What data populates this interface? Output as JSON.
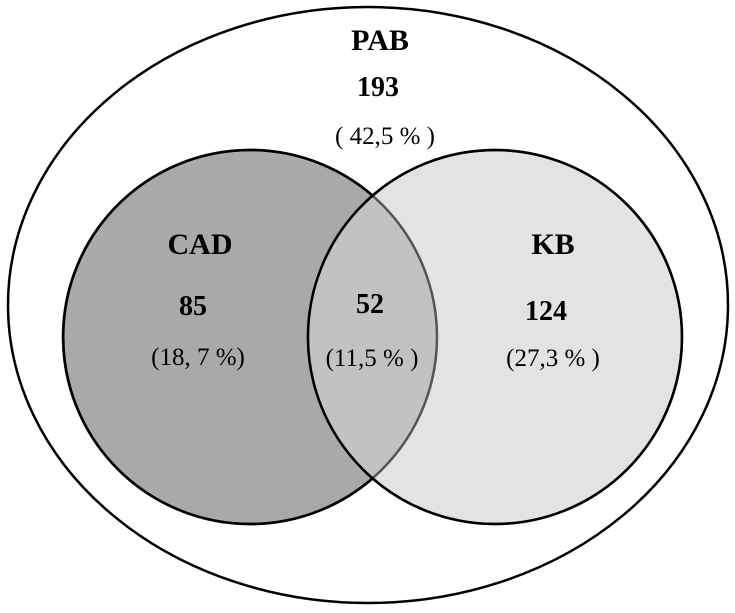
{
  "diagram": {
    "type": "venn",
    "outer_set": {
      "name": "PAB",
      "count": "193",
      "percent": "( 42,5 % )"
    },
    "left_set": {
      "name": "CAD",
      "count": "85",
      "percent": "(18, 7 %)",
      "fill_color": "#a9a9a9"
    },
    "right_set": {
      "name": "KB",
      "count": "124",
      "percent": "(27,3 % )",
      "fill_color": "#e3e3e3"
    },
    "intersection": {
      "count": "52",
      "percent": "(11,5 % )",
      "fill_color": "#c2c2c2"
    },
    "outline_color": "#000000"
  }
}
